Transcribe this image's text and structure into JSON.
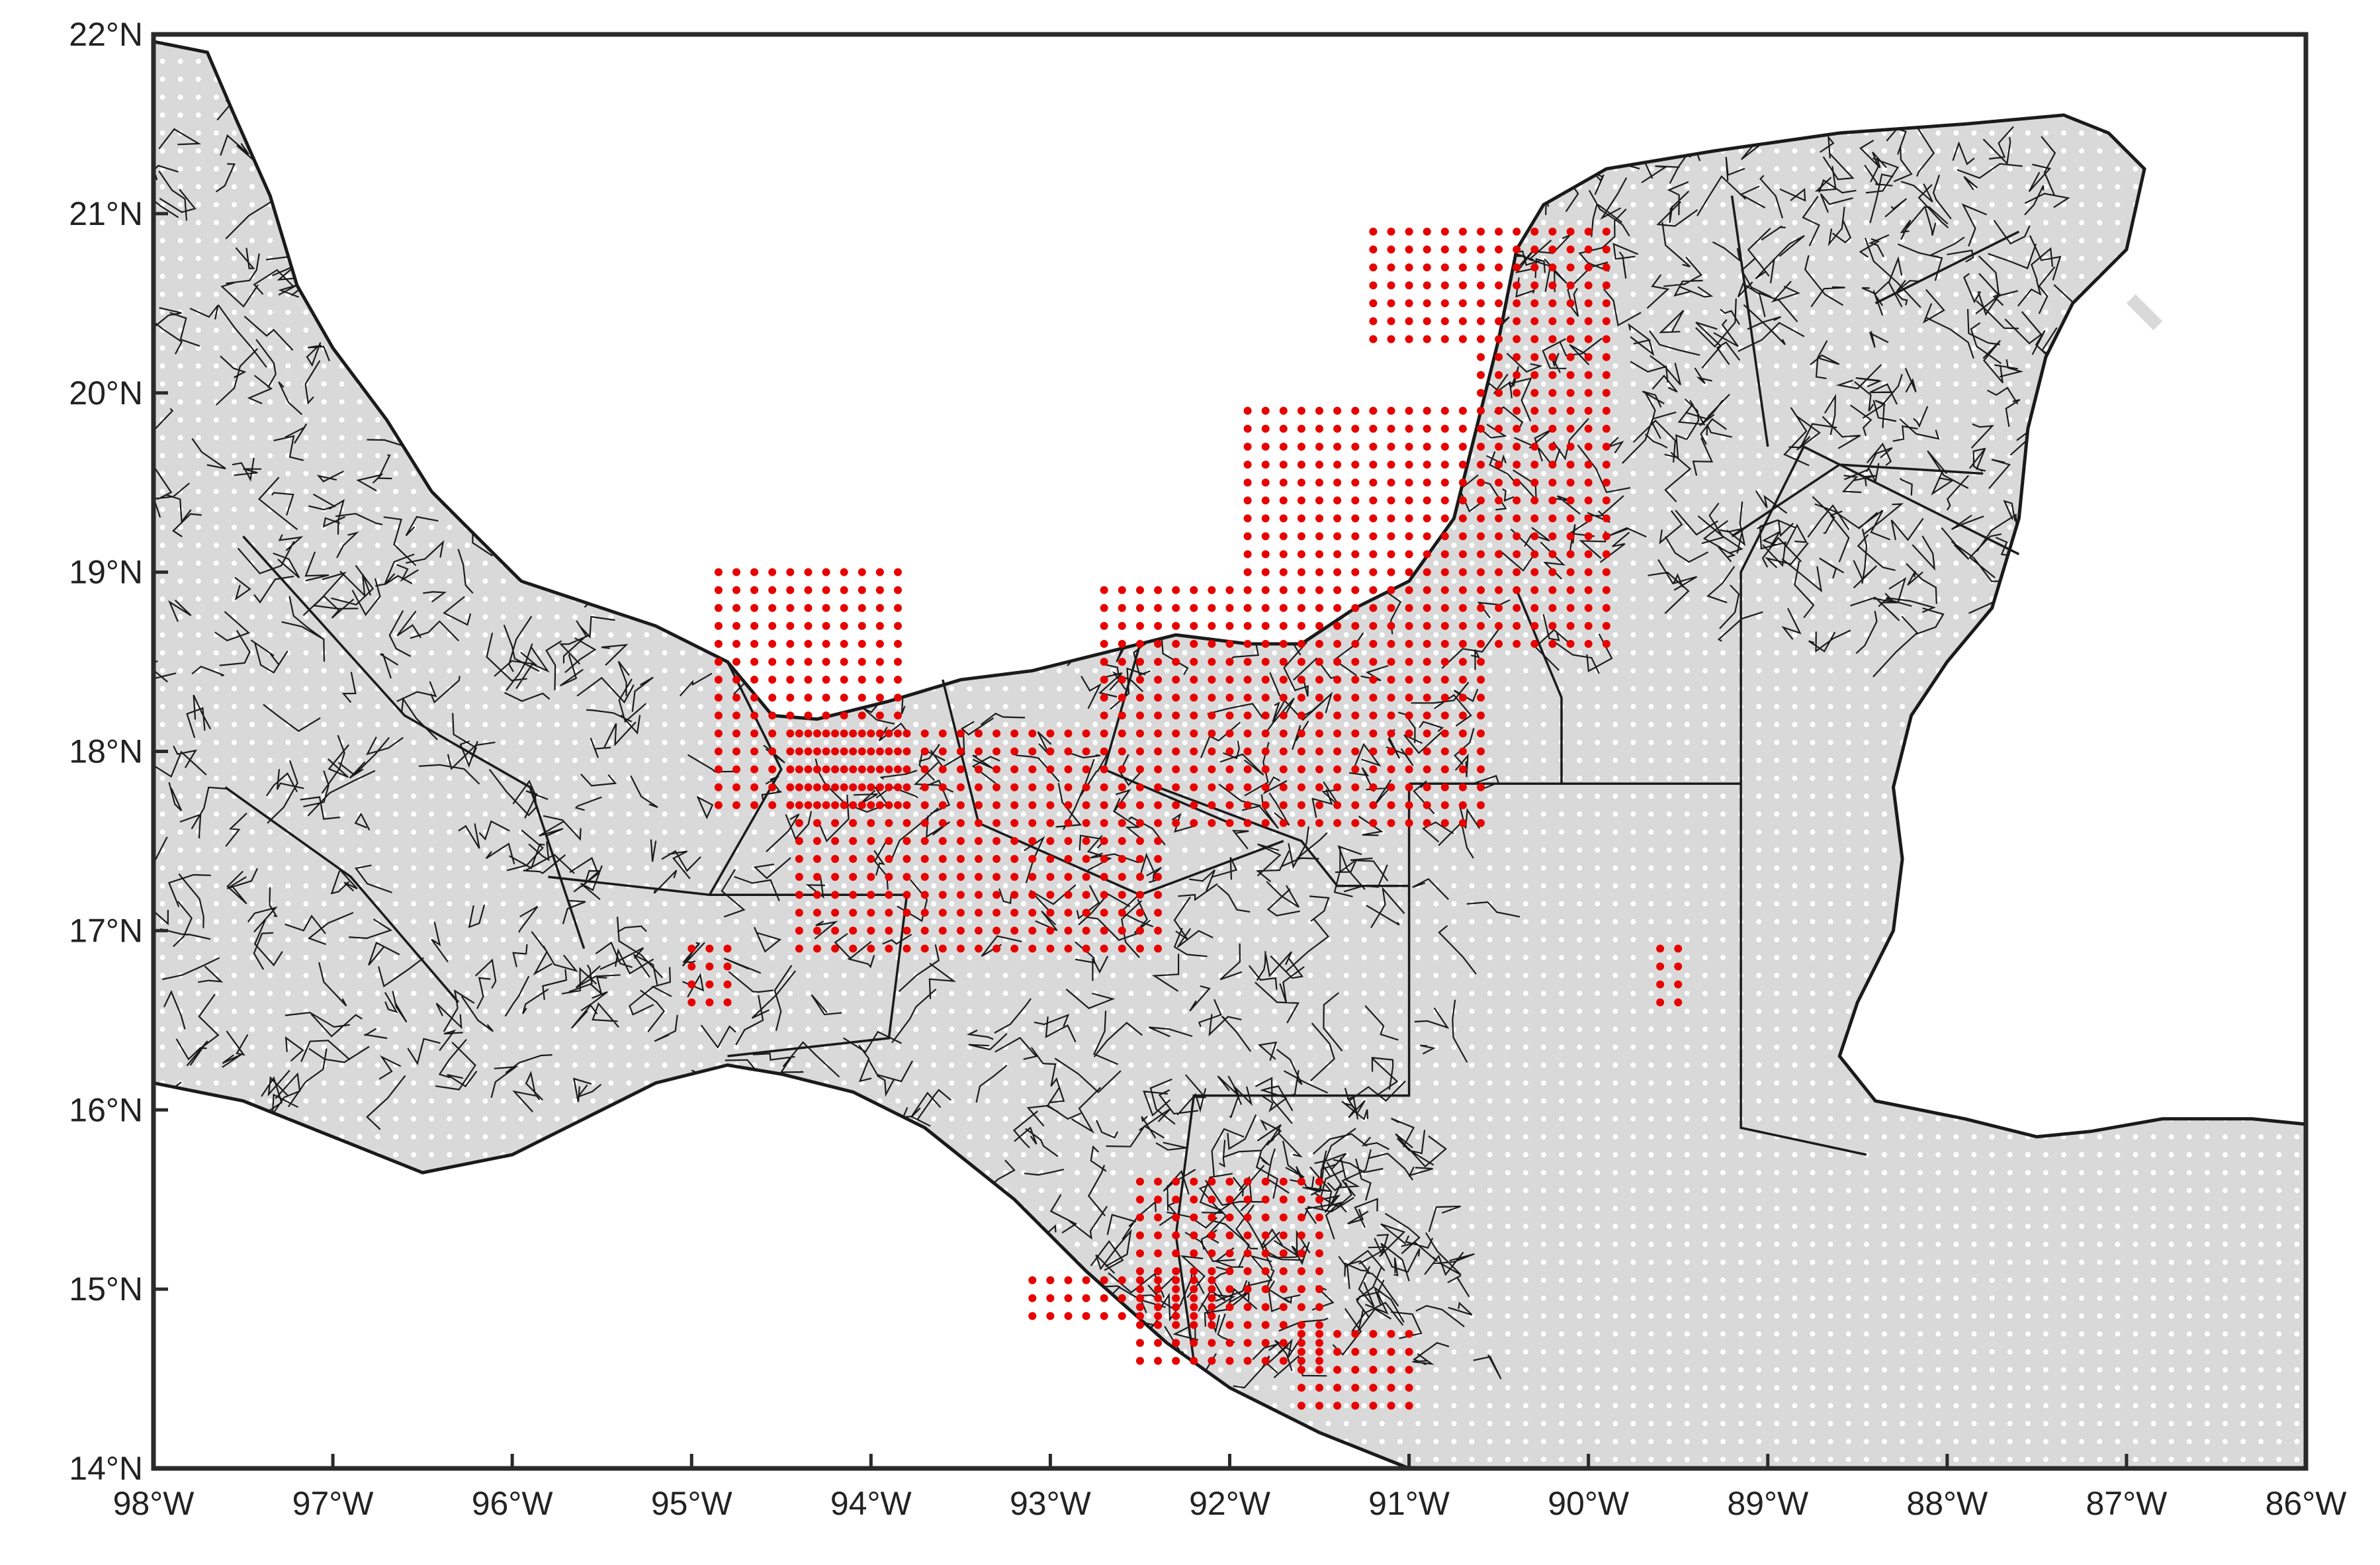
{
  "map": {
    "extent": {
      "lon_min": -98,
      "lon_max": -86,
      "lat_min": 14,
      "lat_max": 22
    },
    "x_ticks": [
      {
        "lon": -98,
        "label": "98°W"
      },
      {
        "lon": -97,
        "label": "97°W"
      },
      {
        "lon": -96,
        "label": "96°W"
      },
      {
        "lon": -95,
        "label": "95°W"
      },
      {
        "lon": -94,
        "label": "94°W"
      },
      {
        "lon": -93,
        "label": "93°W"
      },
      {
        "lon": -92,
        "label": "92°W"
      },
      {
        "lon": -91,
        "label": "91°W"
      },
      {
        "lon": -90,
        "label": "90°W"
      },
      {
        "lon": -89,
        "label": "89°W"
      },
      {
        "lon": -88,
        "label": "88°W"
      },
      {
        "lon": -87,
        "label": "87°W"
      },
      {
        "lon": -86,
        "label": "86°W"
      }
    ],
    "y_ticks": [
      {
        "lat": 22,
        "label": "22°N"
      },
      {
        "lat": 21,
        "label": "21°N"
      },
      {
        "lat": 20,
        "label": "20°N"
      },
      {
        "lat": 19,
        "label": "19°N"
      },
      {
        "lat": 18,
        "label": "18°N"
      },
      {
        "lat": 17,
        "label": "17°N"
      },
      {
        "lat": 16,
        "label": "16°N"
      },
      {
        "lat": 15,
        "label": "15°N"
      },
      {
        "lat": 14,
        "label": "14°N"
      }
    ],
    "grid": true,
    "colors": {
      "land": "#d9d9d9",
      "ocean": "#ffffff",
      "grid_point": "#ffffff",
      "highlight_point": "#e60000",
      "boundary": "#1a1a1a",
      "frame": "#2a2a2a"
    },
    "grid_spacing_deg": 0.1,
    "highlight_clusters": [
      {
        "lon": [
          -94.85,
          -93.85
        ],
        "lat": [
          17.7,
          19.0
        ]
      },
      {
        "lon": [
          -94.4,
          -92.4
        ],
        "lat": [
          16.9,
          18.1
        ]
      },
      {
        "lon": [
          -91.9,
          -90.3
        ],
        "lat": [
          18.6,
          19.9
        ]
      },
      {
        "lon": [
          -92.7,
          -90.6
        ],
        "lat": [
          17.6,
          18.9
        ]
      },
      {
        "lon": [
          -90.6,
          -89.9
        ],
        "lat": [
          18.6,
          20.9
        ]
      },
      {
        "lon": [
          -91.2,
          -90.3
        ],
        "lat": [
          20.3,
          20.9
        ]
      },
      {
        "lon": [
          -92.5,
          -91.5
        ],
        "lat": [
          14.6,
          15.6
        ]
      },
      {
        "lon": [
          -93.1,
          -92.1
        ],
        "lat": [
          14.85,
          15.1
        ]
      },
      {
        "lon": [
          -91.6,
          -91.0
        ],
        "lat": [
          14.35,
          14.8
        ]
      },
      {
        "lon": [
          -89.6,
          -89.45
        ],
        "lat": [
          16.6,
          16.9
        ]
      },
      {
        "lon": [
          -95.0,
          -94.8
        ],
        "lat": [
          16.6,
          16.9
        ]
      }
    ]
  }
}
